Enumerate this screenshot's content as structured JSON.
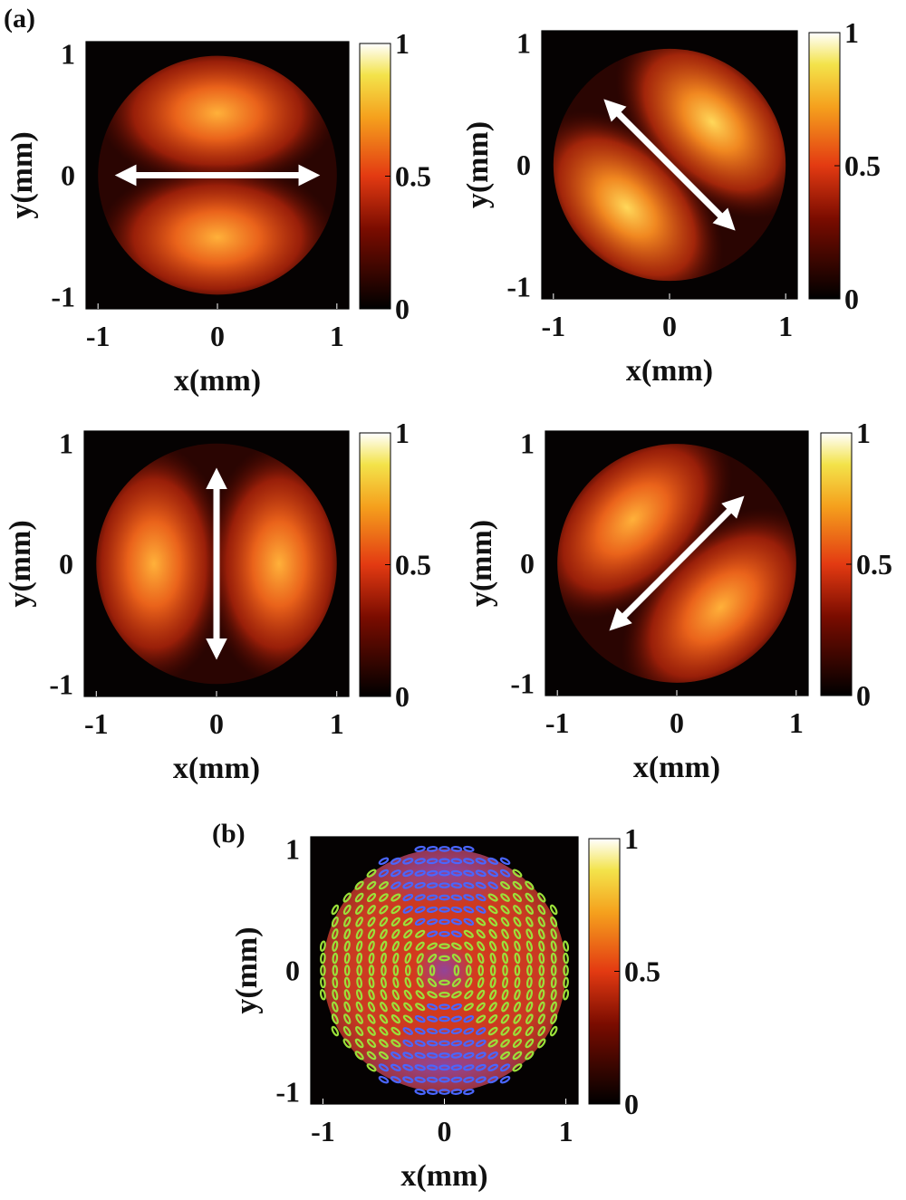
{
  "figure": {
    "panel_a_label": "(a)",
    "panel_b_label": "(b)"
  },
  "chart_data": [
    {
      "type": "heatmap",
      "panel": "(a)",
      "xlabel": "x(mm)",
      "ylabel": "y(mm)",
      "xlim": [
        -1.1,
        1.1
      ],
      "ylim": [
        -1.1,
        1.1
      ],
      "xticks": [
        "-1",
        "0",
        "1"
      ],
      "yticks": [
        "1",
        "0",
        "-1"
      ],
      "colorbar": {
        "min": 0,
        "max": 1,
        "ticks": [
          "1",
          "0.5",
          "0"
        ]
      },
      "polarizer_angle_deg": 0,
      "lobe_orientation": "top-bottom"
    },
    {
      "type": "heatmap",
      "panel": "(a)",
      "xlabel": "x(mm)",
      "ylabel": "y(mm)",
      "xlim": [
        -1.1,
        1.1
      ],
      "ylim": [
        -1.1,
        1.1
      ],
      "xticks": [
        "-1",
        "0",
        "1"
      ],
      "yticks": [
        "1",
        "0",
        "-1"
      ],
      "colorbar": {
        "min": 0,
        "max": 1,
        "ticks": [
          "1",
          "0.5",
          "0"
        ]
      },
      "polarizer_angle_deg": 135,
      "lobe_orientation": "top-right / bottom-left"
    },
    {
      "type": "heatmap",
      "panel": "(a)",
      "xlabel": "x(mm)",
      "ylabel": "y(mm)",
      "xlim": [
        -1.1,
        1.1
      ],
      "ylim": [
        -1.1,
        1.1
      ],
      "xticks": [
        "-1",
        "0",
        "1"
      ],
      "yticks": [
        "1",
        "0",
        "-1"
      ],
      "colorbar": {
        "min": 0,
        "max": 1,
        "ticks": [
          "1",
          "0.5",
          "0"
        ]
      },
      "polarizer_angle_deg": 90,
      "lobe_orientation": "left-right"
    },
    {
      "type": "heatmap",
      "panel": "(a)",
      "xlabel": "x(mm)",
      "ylabel": "y(mm)",
      "xlim": [
        -1.1,
        1.1
      ],
      "ylim": [
        -1.1,
        1.1
      ],
      "xticks": [
        "-1",
        "0",
        "1"
      ],
      "yticks": [
        "1",
        "0",
        "-1"
      ],
      "colorbar": {
        "min": 0,
        "max": 1,
        "ticks": [
          "1",
          "0.5",
          "0"
        ]
      },
      "polarizer_angle_deg": 45,
      "lobe_orientation": "top-left / bottom-right"
    },
    {
      "type": "heatmap",
      "panel": "(b)",
      "xlabel": "x(mm)",
      "ylabel": "y(mm)",
      "xlim": [
        -1.1,
        1.1
      ],
      "ylim": [
        -1.1,
        1.1
      ],
      "xticks": [
        "-1",
        "0",
        "1"
      ],
      "yticks": [
        "1",
        "0",
        "-1"
      ],
      "colorbar": {
        "min": 0,
        "max": 1,
        "ticks": [
          "1",
          "0.5",
          "0"
        ]
      },
      "overlay": "polarization ellipses",
      "ellipse_colors": {
        "green": "#9be03a",
        "blue": "#4a66ff"
      }
    }
  ]
}
